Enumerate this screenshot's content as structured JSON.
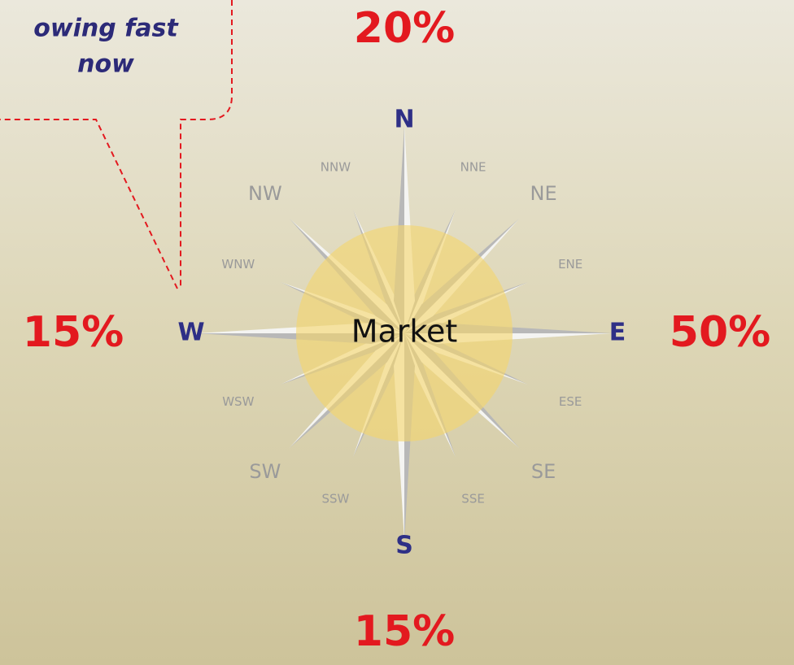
{
  "callout": {
    "lines": [
      "owing fast",
      "now"
    ]
  },
  "compass": {
    "center": "Market",
    "directions": [
      "N",
      "NNE",
      "NE",
      "ENE",
      "E",
      "ESE",
      "SE",
      "SSE",
      "S",
      "SSW",
      "SW",
      "WSW",
      "W",
      "WNW",
      "NW",
      "NNW"
    ]
  },
  "shares": {
    "north": "20%",
    "east": "50%",
    "south": "15%",
    "west": "15%"
  }
}
